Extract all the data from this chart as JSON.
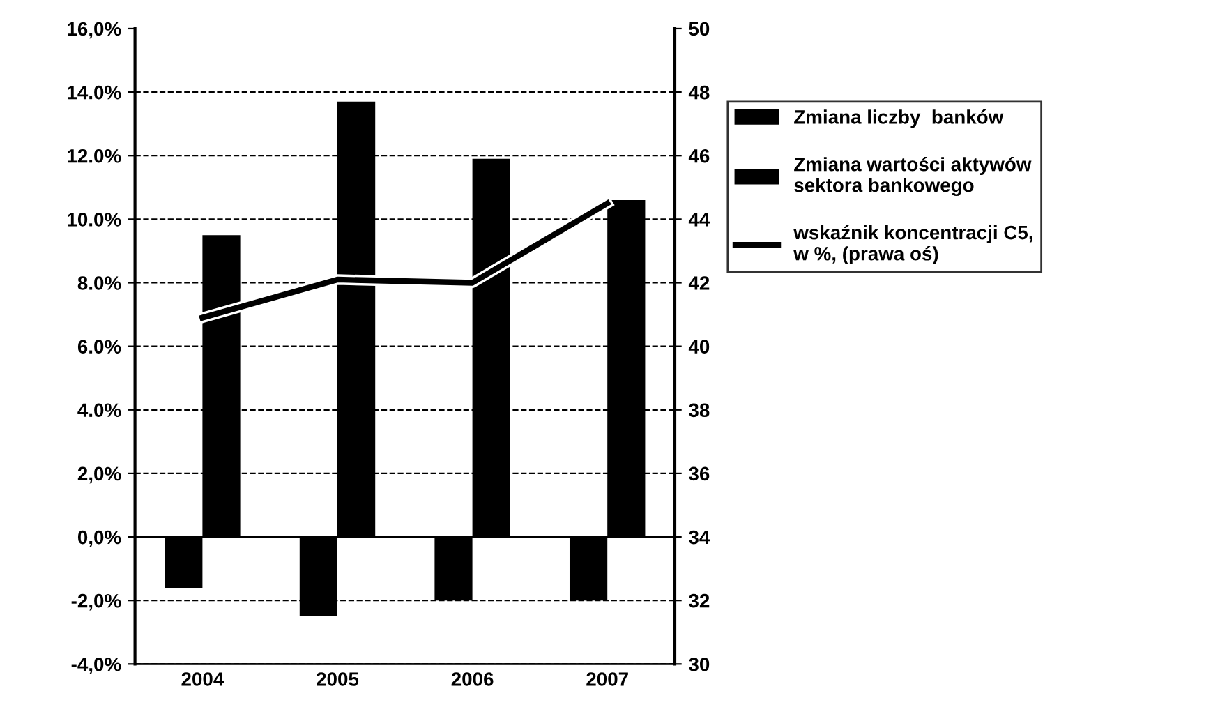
{
  "chart_data": {
    "type": "bar",
    "categories": [
      "2004",
      "2005",
      "2006",
      "2007"
    ],
    "series": [
      {
        "name": "Zmiana liczby  banków",
        "color": "#000000",
        "values": [
          -1.6,
          -2.5,
          -2.0,
          -2.0
        ]
      },
      {
        "name": "Zmiana wartości aktywów\nsektora bankowego",
        "color": "#000000",
        "values": [
          9.5,
          13.7,
          11.9,
          10.6
        ]
      },
      {
        "name": "wskaźnik koncentracji C5,\nw %, (prawa oś)",
        "type": "line",
        "axis": "y2",
        "color": "#000000",
        "values": [
          40.9,
          42.1,
          42.0,
          44.5
        ]
      }
    ],
    "ylim": [
      -4,
      16
    ],
    "yticks": [
      {
        "value": -4,
        "label": "-4,0%"
      },
      {
        "value": -2,
        "label": "-2,0%"
      },
      {
        "value": 0,
        "label": "0,0%"
      },
      {
        "value": 2,
        "label": "2,0%"
      },
      {
        "value": 4,
        "label": "4.0%"
      },
      {
        "value": 6,
        "label": "6.0%"
      },
      {
        "value": 8,
        "label": "8.0%"
      },
      {
        "value": 10,
        "label": "10.0%"
      },
      {
        "value": 12,
        "label": "12.0%"
      },
      {
        "value": 14,
        "label": "14.0%"
      },
      {
        "value": 16,
        "label": "16,0%"
      }
    ],
    "y2lim": [
      30,
      50
    ],
    "y2ticks": [
      30,
      32,
      34,
      36,
      38,
      40,
      42,
      44,
      46,
      48,
      50
    ],
    "grid": "y",
    "legend": "right",
    "marker": "none",
    "line_style": "solid"
  }
}
